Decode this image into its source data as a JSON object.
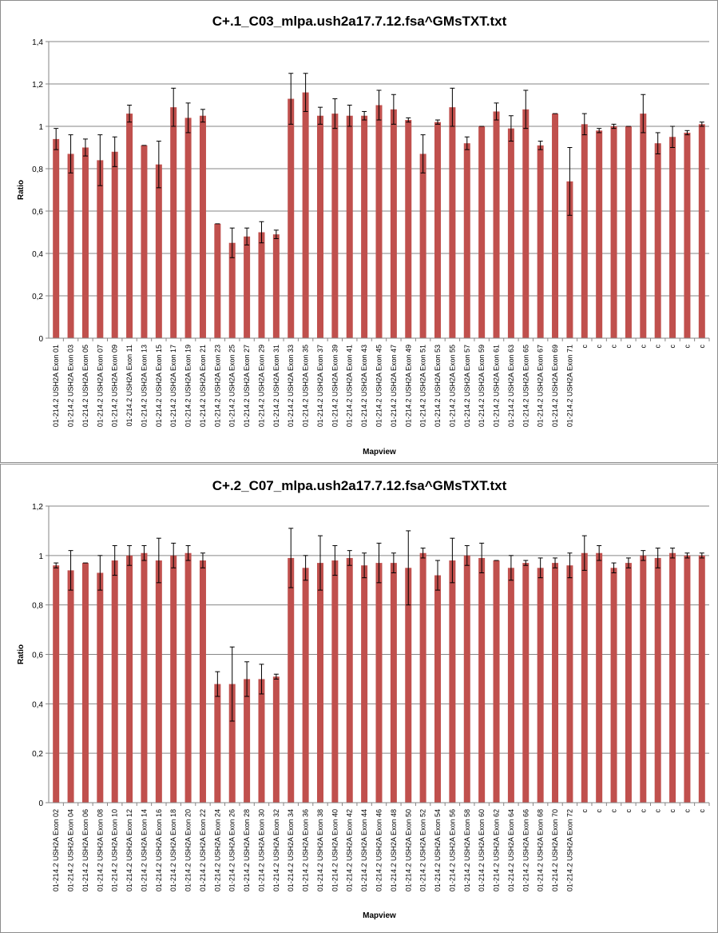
{
  "chart_data": [
    {
      "type": "bar",
      "title": "C+.1_C03_mlpa.ush2a17.7.12.fsa^GMsTXT.txt",
      "xlabel": "Mapview",
      "ylabel": "Ratio",
      "ylim": [
        0,
        1.4
      ],
      "yticks": [
        "0",
        "0,2",
        "0,4",
        "0,6",
        "0,8",
        "1",
        "1,2",
        "1,4"
      ],
      "grid": true,
      "color": "#c0504d",
      "categories": [
        "01-214.2 USH2A Exon 01",
        "01-214.2 USH2A Exon 03",
        "01-214.2 USH2A Exon 05",
        "01-214.2 USH2A Exon 07",
        "01-214.2 USH2A Exon 09",
        "01-214.2 USH2A Exon 11",
        "01-214.2 USH2A Exon 13",
        "01-214.2 USH2A Exon 15",
        "01-214.2 USH2A Exon 17",
        "01-214.2 USH2A Exon 19",
        "01-214.2 USH2A Exon 21",
        "01-214.2 USH2A Exon 23",
        "01-214.2 USH2A Exon 25",
        "01-214.2 USH2A Exon 27",
        "01-214.2 USH2A Exon 29",
        "01-214.2 USH2A Exon 31",
        "01-214.2 USH2A Exon 33",
        "01-214.2 USH2A Exon 35",
        "01-214.2 USH2A Exon 37",
        "01-214.2 USH2A Exon 39",
        "01-214.2 USH2A Exon 41",
        "01-214.2 USH2A Exon 43",
        "01-214.2 USH2A Exon 45",
        "01-214.2 USH2A Exon 47",
        "01-214.2 USH2A Exon 49",
        "01-214.2 USH2A Exon 51",
        "01-214.2 USH2A Exon 53",
        "01-214.2 USH2A Exon 55",
        "01-214.2 USH2A Exon 57",
        "01-214.2 USH2A Exon 59",
        "01-214.2 USH2A Exon 61",
        "01-214.2 USH2A Exon 63",
        "01-214.2 USH2A Exon 65",
        "01-214.2 USH2A Exon 67",
        "01-214.2 USH2A Exon 69",
        "01-214.2 USH2A Exon 71",
        "c",
        "c",
        "c",
        "c",
        "c",
        "c",
        "c",
        "c",
        "c"
      ],
      "values": [
        0.94,
        0.87,
        0.9,
        0.84,
        0.88,
        1.06,
        0.91,
        0.82,
        1.09,
        1.04,
        1.05,
        0.54,
        0.45,
        0.48,
        0.5,
        0.49,
        1.13,
        1.16,
        1.05,
        1.06,
        1.05,
        1.05,
        1.1,
        1.08,
        1.03,
        0.87,
        1.02,
        1.09,
        0.92,
        1.0,
        1.07,
        0.99,
        1.08,
        0.91,
        1.06,
        0.74,
        1.01,
        0.98,
        1.0,
        1.0,
        1.06,
        0.92,
        0.95,
        0.97,
        1.01
      ],
      "errors": [
        0.05,
        0.09,
        0.04,
        0.12,
        0.07,
        0.04,
        0,
        0.11,
        0.09,
        0.07,
        0.03,
        0,
        0.07,
        0.04,
        0.05,
        0.02,
        0.12,
        0.09,
        0.04,
        0.07,
        0.05,
        0.02,
        0.07,
        0.07,
        0.01,
        0.09,
        0.01,
        0.09,
        0.03,
        0,
        0.04,
        0.06,
        0.09,
        0.02,
        0,
        0.16,
        0.05,
        0.01,
        0.01,
        0,
        0.09,
        0.05,
        0.05,
        0.01,
        0.01
      ]
    },
    {
      "type": "bar",
      "title": "C+.2_C07_mlpa.ush2a17.7.12.fsa^GMsTXT.txt",
      "xlabel": "Mapview",
      "ylabel": "Ratio",
      "ylim": [
        0,
        1.2
      ],
      "yticks": [
        "0",
        "0,2",
        "0,4",
        "0,6",
        "0,8",
        "1",
        "1,2"
      ],
      "grid": true,
      "color": "#c0504d",
      "categories": [
        "01-214.2 USH2A Exon 02",
        "01-214.2 USH2A Exon 04",
        "01-214.2 USH2A Exon 06",
        "01-214.2 USH2A Exon 08",
        "01-214.2 USH2A Exon 10",
        "01-214.2 USH2A Exon 12",
        "01-214.2 USH2A Exon 14",
        "01-214.2 USH2A Exon 16",
        "01-214.2 USH2A Exon 18",
        "01-214.2 USH2A Exon 20",
        "01-214.2 USH2A Exon 22",
        "01-214.2 USH2A Exon 24",
        "01-214.2 USH2A Exon 26",
        "01-214.2 USH2A Exon 28",
        "01-214.2 USH2A Exon 30",
        "01-214.2 USH2A Exon 32",
        "01-214.2 USH2A Exon 34",
        "01-214.2 USH2A Exon 36",
        "01-214.2 USH2A Exon 38",
        "01-214.2 USH2A Exon 40",
        "01-214.2 USH2A Exon 42",
        "01-214.2 USH2A Exon 44",
        "01-214.2 USH2A Exon 46",
        "01-214.2 USH2A Exon 48",
        "01-214.2 USH2A Exon 50",
        "01-214.2 USH2A Exon 52",
        "01-214.2 USH2A Exon 54",
        "01-214.2 USH2A Exon 56",
        "01-214.2 USH2A Exon 58",
        "01-214.2 USH2A Exon 60",
        "01-214.2 USH2A Exon 62",
        "01-214.2 USH2A Exon 64",
        "01-214.2 USH2A Exon 66",
        "01-214.2 USH2A Exon 68",
        "01-214.2 USH2A Exon 70",
        "01-214.2 USH2A Exon 72",
        "c",
        "c",
        "c",
        "c",
        "c",
        "c",
        "c",
        "c",
        "c"
      ],
      "values": [
        0.96,
        0.94,
        0.97,
        0.93,
        0.98,
        1.0,
        1.01,
        0.98,
        1.0,
        1.01,
        0.98,
        0.48,
        0.48,
        0.5,
        0.5,
        0.51,
        0.99,
        0.95,
        0.97,
        0.98,
        0.99,
        0.96,
        0.97,
        0.97,
        0.95,
        1.01,
        0.92,
        0.98,
        1.0,
        0.99,
        0.98,
        0.95,
        0.97,
        0.95,
        0.97,
        0.96,
        1.01,
        1.01,
        0.95,
        0.97,
        1.0,
        0.99,
        1.01,
        1.0,
        1.0
      ],
      "errors": [
        0.01,
        0.08,
        0,
        0.07,
        0.06,
        0.04,
        0.03,
        0.09,
        0.05,
        0.03,
        0.03,
        0.05,
        0.15,
        0.07,
        0.06,
        0.01,
        0.12,
        0.05,
        0.11,
        0.06,
        0.03,
        0.05,
        0.08,
        0.04,
        0.15,
        0.02,
        0.06,
        0.09,
        0.04,
        0.06,
        0,
        0.05,
        0.01,
        0.04,
        0.02,
        0.05,
        0.07,
        0.03,
        0.02,
        0.02,
        0.02,
        0.04,
        0.02,
        0.01,
        0.01
      ]
    }
  ]
}
